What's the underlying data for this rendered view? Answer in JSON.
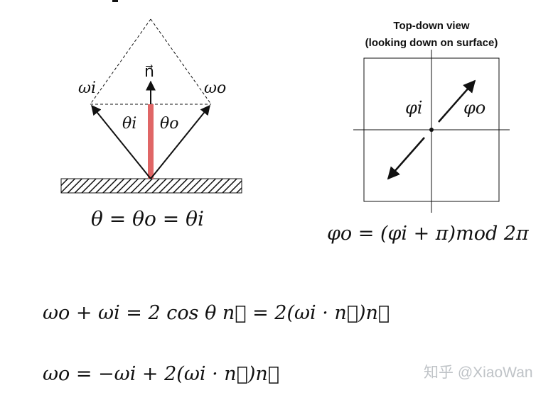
{
  "diagram": {
    "left_figure": {
      "normal_label": "n⃗",
      "omega_i_label": "ωi",
      "omega_o_label": "ωo",
      "theta_i_label": "θi",
      "theta_o_label": "θo",
      "equation": "θ = θo = θi",
      "normal_color": "#e06666"
    },
    "right_figure": {
      "title_line1": "Top-down view",
      "title_line2": "(looking down on surface)",
      "phi_i_label": "φi",
      "phi_o_label": "φo",
      "equation": "φo = (φi + π)mod 2π"
    },
    "equations": {
      "eq1": "ωo + ωi = 2 cos θ n⃗ = 2(ωi · n⃗)n⃗",
      "eq2": "ωo = −ωi + 2(ωi · n⃗)n⃗"
    },
    "watermark": "知乎 @XiaoWan"
  }
}
